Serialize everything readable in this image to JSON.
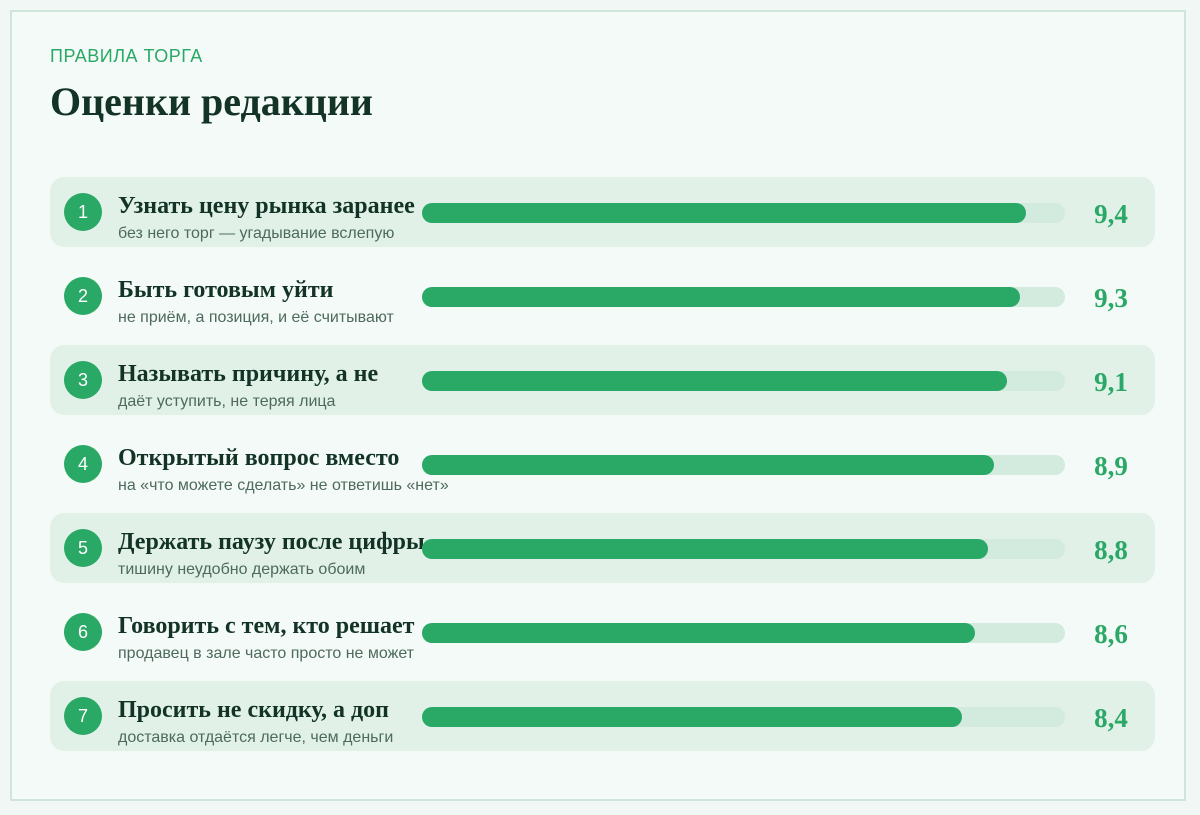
{
  "header": {
    "kicker": "ПРАВИЛА ТОРГА",
    "title": "Оценки редакции"
  },
  "colors": {
    "accent": "#2aa865",
    "track": "#d3ebdf",
    "row_shade": "#e1f1e8",
    "title_text": "#123326"
  },
  "chart_data": {
    "type": "bar",
    "orientation": "horizontal",
    "xlim": [
      0,
      10
    ],
    "grid": false,
    "categories": [
      "Узнать цену рынка заранее",
      "Быть готовым уйти",
      "Называть причину, а не",
      "Открытый вопрос вместо",
      "Держать паузу после цифры",
      "Говорить с тем, кто решает",
      "Просить не скидку, а доп"
    ],
    "values": [
      9.4,
      9.3,
      9.1,
      8.9,
      8.8,
      8.6,
      8.4
    ],
    "rows": [
      {
        "rank": "1",
        "title": "Узнать цену рынка заранее",
        "subtitle": "без него торг — угадывание вслепую",
        "value": 9.4,
        "label": "9,4"
      },
      {
        "rank": "2",
        "title": "Быть готовым уйти",
        "subtitle": "не приём, а позиция, и её считывают",
        "value": 9.3,
        "label": "9,3"
      },
      {
        "rank": "3",
        "title": "Называть причину, а не",
        "subtitle": "даёт уступить, не теряя лица",
        "value": 9.1,
        "label": "9,1"
      },
      {
        "rank": "4",
        "title": "Открытый вопрос вместо",
        "subtitle": "на «что можете сделать» не ответишь «нет»",
        "value": 8.9,
        "label": "8,9"
      },
      {
        "rank": "5",
        "title": "Держать паузу после цифры",
        "subtitle": "тишину неудобно держать обоим",
        "value": 8.8,
        "label": "8,8"
      },
      {
        "rank": "6",
        "title": "Говорить с тем, кто решает",
        "subtitle": "продавец в зале часто просто не может",
        "value": 8.6,
        "label": "8,6"
      },
      {
        "rank": "7",
        "title": "Просить не скидку, а доп",
        "subtitle": "доставка отдаётся легче, чем деньги",
        "value": 8.4,
        "label": "8,4"
      }
    ]
  }
}
